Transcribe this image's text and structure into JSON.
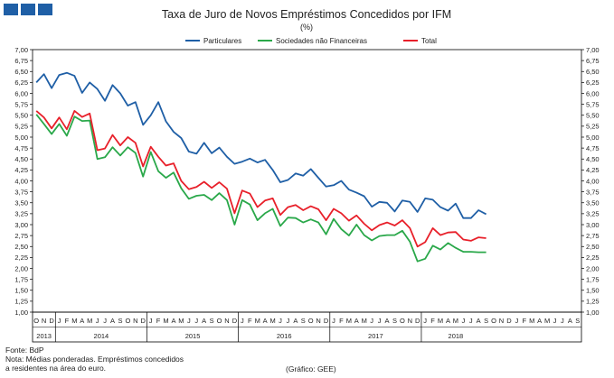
{
  "brand": {
    "color": "#1f5fa6"
  },
  "chart_data": {
    "type": "line",
    "title": "Taxa de Juro de Novos Empréstimos Concedidos por IFM",
    "subtitle": "(%)",
    "ylim": [
      1.0,
      7.0
    ],
    "ystep": 0.25,
    "grid": false,
    "legend_position": "top-center",
    "month_labels": [
      "O",
      "N",
      "D",
      "J",
      "F",
      "M",
      "A",
      "M",
      "J",
      "J",
      "A",
      "S",
      "O",
      "N",
      "D",
      "J",
      "F",
      "M",
      "A",
      "M",
      "J",
      "J",
      "A",
      "S",
      "O",
      "N",
      "D",
      "J",
      "F",
      "M",
      "A",
      "M",
      "J",
      "J",
      "A",
      "S",
      "O",
      "N",
      "D",
      "J",
      "F",
      "M",
      "A",
      "M",
      "J",
      "J",
      "A",
      "S",
      "O",
      "N",
      "D",
      "J",
      "F",
      "M",
      "A",
      "M",
      "J",
      "J",
      "A",
      "S",
      "O",
      "N",
      "D",
      "J",
      "F",
      "M",
      "A",
      "M",
      "J",
      "J",
      "A",
      "S"
    ],
    "years": [
      {
        "label": "2013",
        "start": 0,
        "count": 3
      },
      {
        "label": "2014",
        "start": 3,
        "count": 12
      },
      {
        "label": "2015",
        "start": 15,
        "count": 12
      },
      {
        "label": "2016",
        "start": 27,
        "count": 12
      },
      {
        "label": "2017",
        "start": 39,
        "count": 12
      },
      {
        "label": "2018",
        "start": 51,
        "count": 9
      }
    ],
    "series": [
      {
        "name": "Particulares",
        "color": "#1f5fa6",
        "values": [
          6.25,
          6.44,
          6.12,
          6.42,
          6.47,
          6.4,
          6.01,
          6.25,
          6.1,
          5.83,
          6.19,
          6.0,
          5.72,
          5.8,
          5.28,
          5.5,
          5.8,
          5.36,
          5.12,
          4.98,
          4.67,
          4.62,
          4.87,
          4.63,
          4.76,
          4.55,
          4.39,
          4.44,
          4.51,
          4.42,
          4.48,
          4.25,
          3.97,
          4.02,
          4.17,
          4.12,
          4.27,
          4.07,
          3.87,
          3.9,
          4.0,
          3.8,
          3.73,
          3.65,
          3.41,
          3.52,
          3.5,
          3.3,
          3.55,
          3.52,
          3.29,
          3.6,
          3.57,
          3.4,
          3.32,
          3.48,
          3.15,
          3.15,
          3.33,
          3.24
        ]
      },
      {
        "name": "Sociedades não Financeiras",
        "color": "#2aa84a",
        "values": [
          5.52,
          5.3,
          5.07,
          5.3,
          5.03,
          5.47,
          5.37,
          5.38,
          4.5,
          4.54,
          4.77,
          4.58,
          4.77,
          4.64,
          4.1,
          4.66,
          4.22,
          4.07,
          4.19,
          3.83,
          3.59,
          3.66,
          3.68,
          3.56,
          3.72,
          3.56,
          3.0,
          3.56,
          3.46,
          3.1,
          3.26,
          3.36,
          2.97,
          3.16,
          3.15,
          3.05,
          3.12,
          3.05,
          2.78,
          3.13,
          2.9,
          2.75,
          3.0,
          2.76,
          2.64,
          2.74,
          2.76,
          2.76,
          2.86,
          2.61,
          2.16,
          2.22,
          2.52,
          2.43,
          2.58,
          2.47,
          2.38,
          2.38,
          2.37,
          2.37
        ]
      },
      {
        "name": "Total",
        "color": "#e8202a",
        "values": [
          5.6,
          5.45,
          5.2,
          5.45,
          5.18,
          5.6,
          5.46,
          5.54,
          4.7,
          4.74,
          5.05,
          4.81,
          5.0,
          4.87,
          4.33,
          4.78,
          4.55,
          4.35,
          4.4,
          4.0,
          3.81,
          3.86,
          3.98,
          3.84,
          3.97,
          3.82,
          3.26,
          3.78,
          3.71,
          3.4,
          3.55,
          3.6,
          3.22,
          3.4,
          3.45,
          3.33,
          3.42,
          3.35,
          3.1,
          3.36,
          3.26,
          3.09,
          3.21,
          3.02,
          2.87,
          2.99,
          3.05,
          2.98,
          3.1,
          2.92,
          2.5,
          2.6,
          2.92,
          2.76,
          2.82,
          2.83,
          2.66,
          2.63,
          2.71,
          2.69
        ]
      }
    ]
  },
  "notes": {
    "source": "Fonte: BdP",
    "note_line1": "Nota: Médias ponderadas. Empréstimos concedidos",
    "note_line2": "a residentes na área do euro.",
    "credit": "(Gráfico: GEE)"
  }
}
